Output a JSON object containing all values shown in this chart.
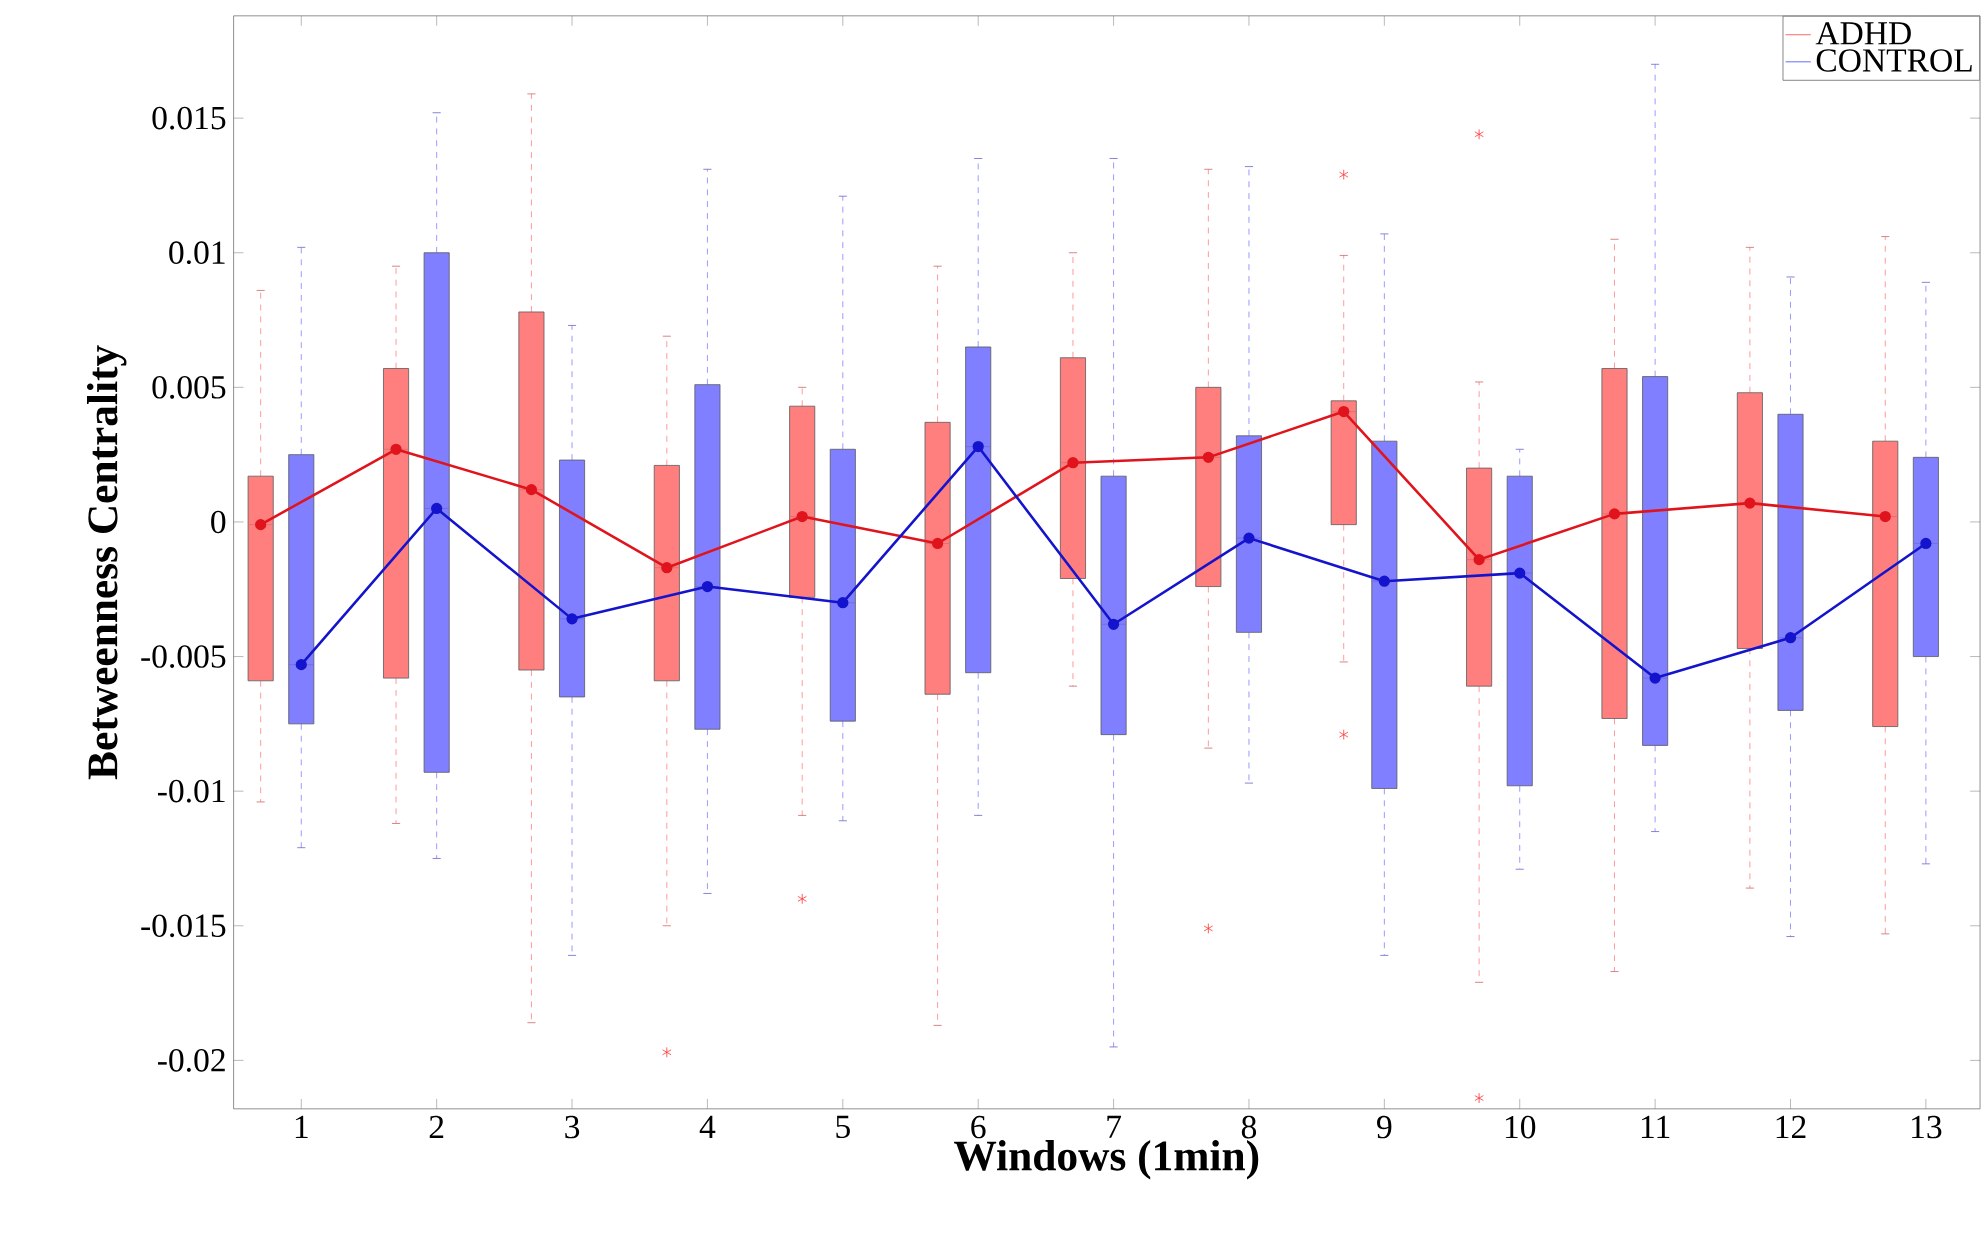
{
  "chart_data": {
    "type": "box",
    "xlabel": "Windows (1min)",
    "ylabel": "Betweenness Centrality",
    "categories": [
      "1",
      "2",
      "3",
      "4",
      "5",
      "6",
      "7",
      "8",
      "9",
      "10",
      "11",
      "12",
      "13"
    ],
    "ylim": [
      -0.0218,
      0.0188
    ],
    "yticks": [
      -0.02,
      -0.015,
      -0.01,
      -0.005,
      0,
      0.005,
      0.01,
      0.015
    ],
    "legend": "top right",
    "series": [
      {
        "name": "ADHD",
        "color": "#ff7f7f",
        "boxes": [
          {
            "low": -0.0104,
            "q1": -0.0059,
            "median": -0.0001,
            "q3": 0.0017,
            "high": 0.0086
          },
          {
            "low": -0.0112,
            "q1": -0.0058,
            "median": 0.0027,
            "q3": 0.0057,
            "high": 0.0095
          },
          {
            "low": -0.0186,
            "q1": -0.0055,
            "median": 0.0012,
            "q3": 0.0078,
            "high": 0.0159
          },
          {
            "low": -0.015,
            "q1": -0.0059,
            "median": -0.0017,
            "q3": 0.0021,
            "high": 0.0069,
            "outliers": [
              -0.0197
            ]
          },
          {
            "low": -0.0109,
            "q1": -0.0028,
            "median": 0.0002,
            "q3": 0.0043,
            "high": 0.005,
            "outliers": [
              -0.014
            ]
          },
          {
            "low": -0.0187,
            "q1": -0.0064,
            "median": -0.0008,
            "q3": 0.0037,
            "high": 0.0095
          },
          {
            "low": -0.0061,
            "q1": -0.0021,
            "median": 0.0022,
            "q3": 0.0061,
            "high": 0.01
          },
          {
            "low": -0.0084,
            "q1": -0.0024,
            "median": 0.0024,
            "q3": 0.005,
            "high": 0.0131,
            "outliers": [
              -0.0151
            ]
          },
          {
            "low": -0.0052,
            "q1": -0.0001,
            "median": 0.0041,
            "q3": 0.0045,
            "high": 0.0099,
            "outliers": [
              0.0129,
              -0.0079
            ]
          },
          {
            "low": -0.0171,
            "q1": -0.0061,
            "median": -0.0014,
            "q3": 0.002,
            "high": 0.0052,
            "outliers": [
              0.0144,
              -0.0214
            ]
          },
          {
            "low": -0.0167,
            "q1": -0.0073,
            "median": 0.0003,
            "q3": 0.0057,
            "high": 0.0105
          },
          {
            "low": -0.0136,
            "q1": -0.0047,
            "median": 0.0007,
            "q3": 0.0048,
            "high": 0.0102
          },
          {
            "low": -0.0153,
            "q1": -0.0076,
            "median": 0.0002,
            "q3": 0.003,
            "high": 0.0106
          }
        ]
      },
      {
        "name": "CONTROL",
        "color": "#7f7fff",
        "boxes": [
          {
            "low": -0.0121,
            "q1": -0.0075,
            "median": -0.0053,
            "q3": 0.0025,
            "high": 0.0102
          },
          {
            "low": -0.0125,
            "q1": -0.0093,
            "median": 0.0005,
            "q3": 0.01,
            "high": 0.0152
          },
          {
            "low": -0.0161,
            "q1": -0.0065,
            "median": -0.0036,
            "q3": 0.0023,
            "high": 0.0073
          },
          {
            "low": -0.0138,
            "q1": -0.0077,
            "median": -0.0024,
            "q3": 0.0051,
            "high": 0.0131
          },
          {
            "low": -0.0111,
            "q1": -0.0074,
            "median": -0.003,
            "q3": 0.0027,
            "high": 0.0121
          },
          {
            "low": -0.0109,
            "q1": -0.0056,
            "median": 0.0028,
            "q3": 0.0065,
            "high": 0.0135
          },
          {
            "low": -0.0195,
            "q1": -0.0079,
            "median": -0.0038,
            "q3": 0.0017,
            "high": 0.0135
          },
          {
            "low": -0.0097,
            "q1": -0.0041,
            "median": -0.0006,
            "q3": 0.0032,
            "high": 0.0132
          },
          {
            "low": -0.0161,
            "q1": -0.0099,
            "median": -0.0022,
            "q3": 0.003,
            "high": 0.0107
          },
          {
            "low": -0.0129,
            "q1": -0.0098,
            "median": -0.0019,
            "q3": 0.0017,
            "high": 0.0027
          },
          {
            "low": -0.0115,
            "q1": -0.0083,
            "median": -0.0058,
            "q3": 0.0054,
            "high": 0.017
          },
          {
            "low": -0.0154,
            "q1": -0.007,
            "median": -0.0043,
            "q3": 0.004,
            "high": 0.0091
          },
          {
            "low": -0.0127,
            "q1": -0.005,
            "median": -0.0008,
            "q3": 0.0024,
            "high": 0.0089
          }
        ]
      },
      {
        "type": "line",
        "color": "#e0141c",
        "marker": "circle",
        "values": [
          -0.0001,
          0.0027,
          0.0012,
          -0.0017,
          0.0002,
          -0.0008,
          0.0022,
          0.0024,
          0.0041,
          -0.0014,
          0.0003,
          0.0007,
          0.0002
        ]
      },
      {
        "type": "line",
        "color": "#1414cc",
        "marker": "circle",
        "values": [
          -0.0053,
          0.0005,
          -0.0036,
          -0.0024,
          -0.003,
          0.0028,
          -0.0038,
          -0.0006,
          -0.0022,
          -0.0019,
          -0.0058,
          -0.0043,
          -0.0008
        ]
      }
    ]
  }
}
